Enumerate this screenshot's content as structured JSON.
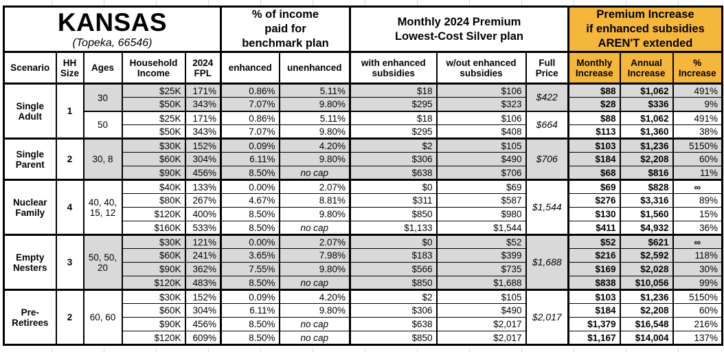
{
  "title": {
    "state": "KANSAS",
    "subtitle": "(Topeka, 66546)"
  },
  "colors": {
    "accent_orange": "#F5B63C",
    "row_shaded": "#D9D9D9",
    "row_unshaded": "#FFFFFF",
    "border": "#000000",
    "gridline": "#D8D8D8"
  },
  "section_headers": {
    "benchmark": "% of income\npaid for\nbenchmark plan",
    "premium": "Monthly 2024 Premium\nLowest-Cost Silver plan",
    "increase": "Premium Increase\nif enhanced subsidies\nAREN'T extended"
  },
  "columns": {
    "scenario": "Scenario",
    "hh_size": "HH\nSize",
    "ages": "Ages",
    "household_income": "Household\nIncome",
    "fpl": "2024\nFPL",
    "enhanced": "enhanced",
    "unenhanced": "unenhanced",
    "with_subsidies": "with enhanced\nsubsidies",
    "without_subsidies": "w/out enhanced\nsubsidies",
    "full_price": "Full\nPrice",
    "monthly_increase": "Monthly\nIncrease",
    "annual_increase": "Annual\nIncrease",
    "pct_increase": "%\nIncrease"
  },
  "groups": [
    {
      "scenario": "Single\nAdult",
      "hh_size": "1",
      "subgroups": [
        {
          "ages": "30",
          "shaded": true,
          "full_price": "$422",
          "rows": [
            {
              "income": "$25K",
              "fpl": "171%",
              "enhanced": "0.86%",
              "unenhanced": "5.11%",
              "with": "$18",
              "without": "$106",
              "monthly": "$88",
              "annual": "$1,062",
              "pct": "491%"
            },
            {
              "income": "$50K",
              "fpl": "343%",
              "enhanced": "7.07%",
              "unenhanced": "9.80%",
              "with": "$295",
              "without": "$323",
              "monthly": "$28",
              "annual": "$336",
              "pct": "9%"
            }
          ]
        },
        {
          "ages": "50",
          "shaded": false,
          "full_price": "$664",
          "rows": [
            {
              "income": "$25K",
              "fpl": "171%",
              "enhanced": "0.86%",
              "unenhanced": "5.11%",
              "with": "$18",
              "without": "$106",
              "monthly": "$88",
              "annual": "$1,062",
              "pct": "491%"
            },
            {
              "income": "$50K",
              "fpl": "343%",
              "enhanced": "7.07%",
              "unenhanced": "9.80%",
              "with": "$295",
              "without": "$408",
              "monthly": "$113",
              "annual": "$1,360",
              "pct": "38%"
            }
          ]
        }
      ]
    },
    {
      "scenario": "Single\nParent",
      "hh_size": "2",
      "subgroups": [
        {
          "ages": "30, 8",
          "shaded": true,
          "full_price": "$706",
          "rows": [
            {
              "income": "$30K",
              "fpl": "152%",
              "enhanced": "0.09%",
              "unenhanced": "4.20%",
              "with": "$2",
              "without": "$105",
              "monthly": "$103",
              "annual": "$1,236",
              "pct": "5150%"
            },
            {
              "income": "$60K",
              "fpl": "304%",
              "enhanced": "6.11%",
              "unenhanced": "9.80%",
              "with": "$306",
              "without": "$490",
              "monthly": "$184",
              "annual": "$2,208",
              "pct": "60%"
            },
            {
              "income": "$90K",
              "fpl": "456%",
              "enhanced": "8.50%",
              "unenhanced": "no cap",
              "with": "$638",
              "without": "$706",
              "monthly": "$68",
              "annual": "$816",
              "pct": "11%"
            }
          ]
        }
      ]
    },
    {
      "scenario": "Nuclear\nFamily",
      "hh_size": "4",
      "subgroups": [
        {
          "ages": "40, 40,\n15, 12",
          "shaded": false,
          "full_price": "$1,544",
          "rows": [
            {
              "income": "$40K",
              "fpl": "133%",
              "enhanced": "0.00%",
              "unenhanced": "2.07%",
              "with": "$0",
              "without": "$69",
              "monthly": "$69",
              "annual": "$828",
              "pct": "∞"
            },
            {
              "income": "$80K",
              "fpl": "267%",
              "enhanced": "4.67%",
              "unenhanced": "8.81%",
              "with": "$311",
              "without": "$587",
              "monthly": "$276",
              "annual": "$3,316",
              "pct": "89%"
            },
            {
              "income": "$120K",
              "fpl": "400%",
              "enhanced": "8.50%",
              "unenhanced": "9.80%",
              "with": "$850",
              "without": "$980",
              "monthly": "$130",
              "annual": "$1,560",
              "pct": "15%"
            },
            {
              "income": "$160K",
              "fpl": "533%",
              "enhanced": "8.50%",
              "unenhanced": "no cap",
              "with": "$1,133",
              "without": "$1,544",
              "monthly": "$411",
              "annual": "$4,932",
              "pct": "36%"
            }
          ]
        }
      ]
    },
    {
      "scenario": "Empty\nNesters",
      "hh_size": "3",
      "subgroups": [
        {
          "ages": "50, 50,\n20",
          "shaded": true,
          "full_price": "$1,688",
          "rows": [
            {
              "income": "$30K",
              "fpl": "121%",
              "enhanced": "0.00%",
              "unenhanced": "2.07%",
              "with": "$0",
              "without": "$52",
              "monthly": "$52",
              "annual": "$621",
              "pct": "∞"
            },
            {
              "income": "$60K",
              "fpl": "241%",
              "enhanced": "3.65%",
              "unenhanced": "7.98%",
              "with": "$183",
              "without": "$399",
              "monthly": "$216",
              "annual": "$2,592",
              "pct": "118%"
            },
            {
              "income": "$90K",
              "fpl": "362%",
              "enhanced": "7.55%",
              "unenhanced": "9.80%",
              "with": "$566",
              "without": "$735",
              "monthly": "$169",
              "annual": "$2,028",
              "pct": "30%"
            },
            {
              "income": "$120K",
              "fpl": "483%",
              "enhanced": "8.50%",
              "unenhanced": "no cap",
              "with": "$850",
              "without": "$1,688",
              "monthly": "$838",
              "annual": "$10,056",
              "pct": "99%"
            }
          ]
        }
      ]
    },
    {
      "scenario": "Pre-\nRetirees",
      "hh_size": "2",
      "subgroups": [
        {
          "ages": "60, 60",
          "shaded": false,
          "full_price": "$2,017",
          "rows": [
            {
              "income": "$30K",
              "fpl": "152%",
              "enhanced": "0.09%",
              "unenhanced": "4.20%",
              "with": "$2",
              "without": "$105",
              "monthly": "$103",
              "annual": "$1,236",
              "pct": "5150%"
            },
            {
              "income": "$60K",
              "fpl": "304%",
              "enhanced": "6.11%",
              "unenhanced": "9.80%",
              "with": "$306",
              "without": "$490",
              "monthly": "$184",
              "annual": "$2,208",
              "pct": "60%"
            },
            {
              "income": "$90K",
              "fpl": "456%",
              "enhanced": "8.50%",
              "unenhanced": "no cap",
              "with": "$638",
              "without": "$2,017",
              "monthly": "$1,379",
              "annual": "$16,548",
              "pct": "216%"
            },
            {
              "income": "$120K",
              "fpl": "609%",
              "enhanced": "8.50%",
              "unenhanced": "no cap",
              "with": "$850",
              "without": "$2,017",
              "monthly": "$1,167",
              "annual": "$14,004",
              "pct": "137%"
            }
          ]
        }
      ]
    }
  ],
  "chart_data": {
    "type": "table",
    "title": "KANSAS (Topeka, 66546)",
    "section_headers": [
      "% of income paid for benchmark plan",
      "Monthly 2024 Premium Lowest-Cost Silver plan",
      "Premium Increase if enhanced subsidies AREN'T extended"
    ],
    "columns": [
      "Scenario",
      "HH Size",
      "Ages",
      "Household Income",
      "2024 FPL",
      "enhanced",
      "unenhanced",
      "with enhanced subsidies",
      "w/out enhanced subsidies",
      "Full Price",
      "Monthly Increase",
      "Annual Increase",
      "% Increase"
    ],
    "rows": [
      [
        "Single Adult",
        "1",
        "30",
        "$25K",
        "171%",
        "0.86%",
        "5.11%",
        "$18",
        "$106",
        "$422",
        "$88",
        "$1,062",
        "491%"
      ],
      [
        "Single Adult",
        "1",
        "30",
        "$50K",
        "343%",
        "7.07%",
        "9.80%",
        "$295",
        "$323",
        "$422",
        "$28",
        "$336",
        "9%"
      ],
      [
        "Single Adult",
        "1",
        "50",
        "$25K",
        "171%",
        "0.86%",
        "5.11%",
        "$18",
        "$106",
        "$664",
        "$88",
        "$1,062",
        "491%"
      ],
      [
        "Single Adult",
        "1",
        "50",
        "$50K",
        "343%",
        "7.07%",
        "9.80%",
        "$295",
        "$408",
        "$664",
        "$113",
        "$1,360",
        "38%"
      ],
      [
        "Single Parent",
        "2",
        "30, 8",
        "$30K",
        "152%",
        "0.09%",
        "4.20%",
        "$2",
        "$105",
        "$706",
        "$103",
        "$1,236",
        "5150%"
      ],
      [
        "Single Parent",
        "2",
        "30, 8",
        "$60K",
        "304%",
        "6.11%",
        "9.80%",
        "$306",
        "$490",
        "$706",
        "$184",
        "$2,208",
        "60%"
      ],
      [
        "Single Parent",
        "2",
        "30, 8",
        "$90K",
        "456%",
        "8.50%",
        "no cap",
        "$638",
        "$706",
        "$706",
        "$68",
        "$816",
        "11%"
      ],
      [
        "Nuclear Family",
        "4",
        "40, 40, 15, 12",
        "$40K",
        "133%",
        "0.00%",
        "2.07%",
        "$0",
        "$69",
        "$1,544",
        "$69",
        "$828",
        "∞"
      ],
      [
        "Nuclear Family",
        "4",
        "40, 40, 15, 12",
        "$80K",
        "267%",
        "4.67%",
        "8.81%",
        "$311",
        "$587",
        "$1,544",
        "$276",
        "$3,316",
        "89%"
      ],
      [
        "Nuclear Family",
        "4",
        "40, 40, 15, 12",
        "$120K",
        "400%",
        "8.50%",
        "9.80%",
        "$850",
        "$980",
        "$1,544",
        "$130",
        "$1,560",
        "15%"
      ],
      [
        "Nuclear Family",
        "4",
        "40, 40, 15, 12",
        "$160K",
        "533%",
        "8.50%",
        "no cap",
        "$1,133",
        "$1,544",
        "$1,544",
        "$411",
        "$4,932",
        "36%"
      ],
      [
        "Empty Nesters",
        "3",
        "50, 50, 20",
        "$30K",
        "121%",
        "0.00%",
        "2.07%",
        "$0",
        "$52",
        "$1,688",
        "$52",
        "$621",
        "∞"
      ],
      [
        "Empty Nesters",
        "3",
        "50, 50, 20",
        "$60K",
        "241%",
        "3.65%",
        "7.98%",
        "$183",
        "$399",
        "$1,688",
        "$216",
        "$2,592",
        "118%"
      ],
      [
        "Empty Nesters",
        "3",
        "50, 50, 20",
        "$90K",
        "362%",
        "7.55%",
        "9.80%",
        "$566",
        "$735",
        "$1,688",
        "$169",
        "$2,028",
        "30%"
      ],
      [
        "Empty Nesters",
        "3",
        "50, 50, 20",
        "$120K",
        "483%",
        "8.50%",
        "no cap",
        "$850",
        "$1,688",
        "$1,688",
        "$838",
        "$10,056",
        "99%"
      ],
      [
        "Pre-Retirees",
        "2",
        "60, 60",
        "$30K",
        "152%",
        "0.09%",
        "4.20%",
        "$2",
        "$105",
        "$2,017",
        "$103",
        "$1,236",
        "5150%"
      ],
      [
        "Pre-Retirees",
        "2",
        "60, 60",
        "$60K",
        "304%",
        "6.11%",
        "9.80%",
        "$306",
        "$490",
        "$2,017",
        "$184",
        "$2,208",
        "60%"
      ],
      [
        "Pre-Retirees",
        "2",
        "60, 60",
        "$90K",
        "456%",
        "8.50%",
        "no cap",
        "$638",
        "$2,017",
        "$2,017",
        "$1,379",
        "$16,548",
        "216%"
      ],
      [
        "Pre-Retirees",
        "2",
        "60, 60",
        "$120K",
        "609%",
        "8.50%",
        "no cap",
        "$850",
        "$2,017",
        "$2,017",
        "$1,167",
        "$14,004",
        "137%"
      ]
    ]
  }
}
